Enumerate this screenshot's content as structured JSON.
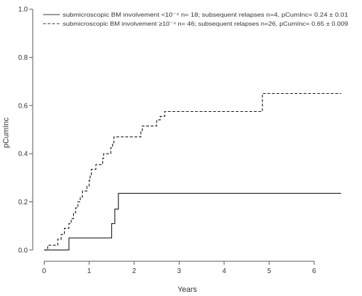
{
  "chart_data": {
    "type": "line",
    "step": true,
    "xlabel": "Years",
    "ylabel": "pCumInc",
    "xlim": [
      -0.1,
      6.6
    ],
    "ylim": [
      -0.015,
      1.015
    ],
    "x_ticks": [
      0,
      1,
      2,
      3,
      4,
      5,
      6
    ],
    "y_ticks": [
      0.0,
      0.2,
      0.4,
      0.6,
      0.8,
      1.0
    ],
    "y_tick_labels": [
      "0.0",
      "0.2",
      "0.4",
      "0.6",
      "0.8",
      "1.0"
    ],
    "grid": false,
    "legend_position": "top-left",
    "series": [
      {
        "name": "submicroscopic BM involvement <10⁻⁴   n=  18; subsequent relapses n=4,   pCumInc= 0.24 ± 0.01",
        "line_style": "solid",
        "color": "#111111",
        "points": [
          [
            0.0,
            0.0
          ],
          [
            0.55,
            0.0
          ],
          [
            0.55,
            0.05
          ],
          [
            1.5,
            0.05
          ],
          [
            1.5,
            0.11
          ],
          [
            1.57,
            0.11
          ],
          [
            1.57,
            0.17
          ],
          [
            1.65,
            0.17
          ],
          [
            1.65,
            0.235
          ],
          [
            6.6,
            0.235
          ]
        ]
      },
      {
        "name": "submicroscopic BM involvement ≥10⁻⁴   n=  46; subsequent relapses n=26,   pCumInc= 0.65 ± 0.009",
        "line_style": "dashed",
        "color": "#111111",
        "points": [
          [
            0.0,
            0.0
          ],
          [
            0.08,
            0.0
          ],
          [
            0.08,
            0.02
          ],
          [
            0.3,
            0.02
          ],
          [
            0.3,
            0.045
          ],
          [
            0.38,
            0.045
          ],
          [
            0.38,
            0.065
          ],
          [
            0.45,
            0.065
          ],
          [
            0.45,
            0.09
          ],
          [
            0.55,
            0.09
          ],
          [
            0.55,
            0.11
          ],
          [
            0.6,
            0.11
          ],
          [
            0.6,
            0.13
          ],
          [
            0.65,
            0.13
          ],
          [
            0.65,
            0.155
          ],
          [
            0.7,
            0.155
          ],
          [
            0.7,
            0.175
          ],
          [
            0.75,
            0.175
          ],
          [
            0.75,
            0.2
          ],
          [
            0.8,
            0.2
          ],
          [
            0.8,
            0.22
          ],
          [
            0.85,
            0.22
          ],
          [
            0.85,
            0.245
          ],
          [
            0.95,
            0.245
          ],
          [
            0.95,
            0.265
          ],
          [
            1.0,
            0.265
          ],
          [
            1.0,
            0.29
          ],
          [
            1.02,
            0.29
          ],
          [
            1.02,
            0.31
          ],
          [
            1.05,
            0.31
          ],
          [
            1.05,
            0.335
          ],
          [
            1.15,
            0.335
          ],
          [
            1.15,
            0.355
          ],
          [
            1.3,
            0.355
          ],
          [
            1.3,
            0.38
          ],
          [
            1.32,
            0.38
          ],
          [
            1.32,
            0.4
          ],
          [
            1.48,
            0.4
          ],
          [
            1.48,
            0.425
          ],
          [
            1.52,
            0.425
          ],
          [
            1.52,
            0.445
          ],
          [
            1.55,
            0.445
          ],
          [
            1.55,
            0.47
          ],
          [
            2.15,
            0.47
          ],
          [
            2.15,
            0.495
          ],
          [
            2.18,
            0.495
          ],
          [
            2.18,
            0.515
          ],
          [
            2.5,
            0.515
          ],
          [
            2.5,
            0.54
          ],
          [
            2.58,
            0.54
          ],
          [
            2.58,
            0.555
          ],
          [
            2.68,
            0.555
          ],
          [
            2.68,
            0.575
          ],
          [
            4.85,
            0.575
          ],
          [
            4.85,
            0.65
          ],
          [
            6.6,
            0.65
          ]
        ]
      }
    ]
  }
}
